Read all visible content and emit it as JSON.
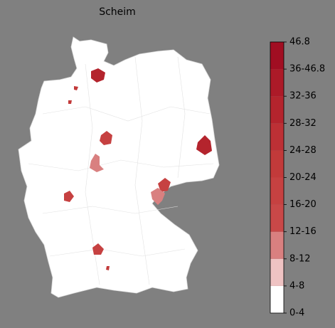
{
  "title": "Scheim",
  "colorbar": {
    "ticks": [
      "0-4",
      "4-8",
      "8-12",
      "12-16",
      "16-20",
      "20-24",
      "24-28",
      "28-32",
      "32-36",
      "36-46.8",
      "46.8"
    ],
    "colors": [
      "#ffffff",
      "#efc3c3",
      "#d98080",
      "#c94848",
      "#c64141",
      "#c23a3a",
      "#bd3035",
      "#b4242d",
      "#ac1a28",
      "#a10e22"
    ]
  }
}
